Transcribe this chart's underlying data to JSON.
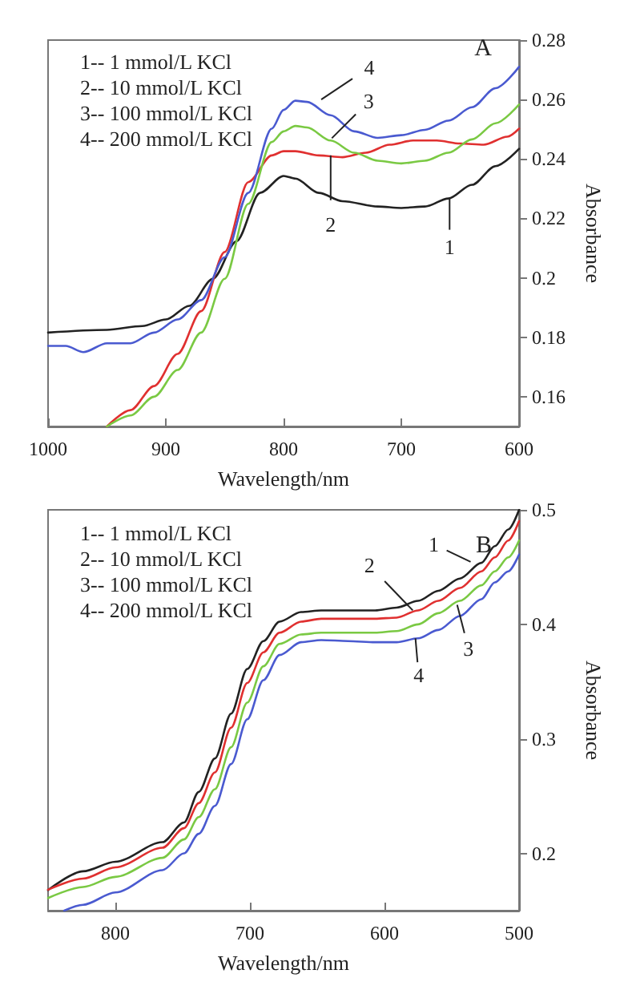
{
  "chart_data": [
    {
      "type": "line",
      "title": "A",
      "xlabel": "Wavelength/nm",
      "ylabel": "Absorbance",
      "xlim": [
        1000,
        600
      ],
      "xticks": [
        1000,
        900,
        800,
        700,
        600
      ],
      "ylim": [
        0.15,
        0.28
      ],
      "yticks": [
        0.16,
        0.18,
        0.2,
        0.22,
        0.24,
        0.26,
        0.28
      ],
      "grid": false,
      "marker": "none",
      "line_style": "solid",
      "annotations": [
        "1-- 1 mmol/L KCl",
        "2-- 10 mmol/L KCl",
        "3-- 100 mmol/L KCl",
        "4-- 200 mmol/L KCl",
        {
          "text": "4",
          "x": 768,
          "y": 0.26
        },
        {
          "text": "3",
          "x": 759,
          "y": 0.247
        },
        {
          "text": "2",
          "x": 760,
          "y": 0.2412
        },
        {
          "text": "1",
          "x": 659,
          "y": 0.2267
        }
      ],
      "series": [
        {
          "color": "#222222",
          "x": [
            1000,
            950,
            920,
            900,
            880,
            860,
            840,
            820,
            800,
            790,
            770,
            750,
            720,
            700,
            680,
            660,
            640,
            620,
            600
          ],
          "values": [
            0.1816,
            0.1825,
            0.1838,
            0.186,
            0.1906,
            0.1997,
            0.2123,
            0.2286,
            0.2343,
            0.2334,
            0.2286,
            0.2258,
            0.224,
            0.2235,
            0.224,
            0.2267,
            0.2313,
            0.2376,
            0.2434
          ]
        },
        {
          "color": "#e03030",
          "x": [
            950,
            930,
            910,
            890,
            870,
            850,
            830,
            810,
            800,
            790,
            770,
            750,
            730,
            710,
            690,
            670,
            650,
            630,
            610,
            600
          ],
          "values": [
            0.15,
            0.1555,
            0.1636,
            0.1744,
            0.1888,
            0.2087,
            0.2322,
            0.2412,
            0.2426,
            0.2426,
            0.2412,
            0.2406,
            0.2421,
            0.2448,
            0.2462,
            0.2462,
            0.2452,
            0.2448,
            0.2475,
            0.2502
          ]
        },
        {
          "color": "#7ac943",
          "x": [
            950,
            930,
            910,
            890,
            870,
            850,
            830,
            810,
            800,
            790,
            780,
            760,
            740,
            720,
            700,
            680,
            660,
            640,
            620,
            600
          ],
          "values": [
            0.15,
            0.1537,
            0.16,
            0.169,
            0.1816,
            0.1997,
            0.2249,
            0.2457,
            0.2493,
            0.2511,
            0.2506,
            0.2462,
            0.2421,
            0.2394,
            0.2385,
            0.2394,
            0.2421,
            0.2466,
            0.252,
            0.2583
          ]
        },
        {
          "color": "#4a5ad0",
          "x": [
            1000,
            985,
            970,
            950,
            930,
            910,
            890,
            870,
            850,
            830,
            810,
            800,
            790,
            780,
            760,
            740,
            720,
            700,
            680,
            660,
            640,
            620,
            600
          ],
          "values": [
            0.1771,
            0.1771,
            0.175,
            0.178,
            0.178,
            0.1816,
            0.186,
            0.1925,
            0.2069,
            0.2286,
            0.2502,
            0.2565,
            0.2596,
            0.2592,
            0.2547,
            0.2493,
            0.2471,
            0.248,
            0.2498,
            0.2529,
            0.2574,
            0.2638,
            0.271
          ]
        }
      ]
    },
    {
      "type": "line",
      "title": "B",
      "xlabel": "Wavelength/nm",
      "ylabel": "Absorbance",
      "xlim": [
        850,
        500
      ],
      "xticks": [
        800,
        700,
        600,
        500
      ],
      "ylim": [
        0.15,
        0.5
      ],
      "yticks": [
        0.2,
        0.3,
        0.4,
        0.5
      ],
      "grid": false,
      "marker": "none",
      "line_style": "solid",
      "annotations": [
        "1-- 1 mmol/L KCl",
        "2-- 10 mmol/L KCl",
        "3-- 100 mmol/L KCl",
        "4-- 200 mmol/L KCl",
        {
          "text": "1",
          "x": 536,
          "y": 0.4546
        },
        {
          "text": "2",
          "x": 579,
          "y": 0.4122
        },
        {
          "text": "3",
          "x": 546,
          "y": 0.417
        },
        {
          "text": "4",
          "x": 577,
          "y": 0.3878
        }
      ],
      "series": [
        {
          "color": "#222222",
          "x": [
            850,
            824,
            800,
            765,
            749,
            738,
            726,
            714,
            702,
            690,
            678,
            662,
            647,
            627,
            607,
            591,
            575,
            560,
            544,
            528,
            518,
            508,
            500
          ],
          "values": [
            0.168,
            0.1844,
            0.1927,
            0.2098,
            0.227,
            0.2537,
            0.2829,
            0.322,
            0.361,
            0.3854,
            0.4024,
            0.4107,
            0.4122,
            0.4122,
            0.4122,
            0.4146,
            0.4205,
            0.4293,
            0.44,
            0.4537,
            0.4683,
            0.4829,
            0.5
          ]
        },
        {
          "color": "#e03030",
          "x": [
            850,
            824,
            800,
            765,
            749,
            738,
            726,
            714,
            702,
            690,
            678,
            662,
            647,
            627,
            607,
            591,
            575,
            560,
            544,
            528,
            518,
            508,
            500
          ],
          "values": [
            0.1683,
            0.178,
            0.1878,
            0.2049,
            0.222,
            0.2439,
            0.2707,
            0.3098,
            0.3488,
            0.3756,
            0.3927,
            0.4024,
            0.4049,
            0.4049,
            0.4049,
            0.4059,
            0.4122,
            0.4205,
            0.4317,
            0.4463,
            0.4585,
            0.4732,
            0.4902
          ]
        },
        {
          "color": "#7ac943",
          "x": [
            850,
            824,
            800,
            765,
            749,
            738,
            726,
            714,
            702,
            690,
            678,
            662,
            647,
            627,
            607,
            591,
            575,
            560,
            544,
            528,
            518,
            508,
            500
          ],
          "values": [
            0.161,
            0.1707,
            0.1795,
            0.1961,
            0.2122,
            0.2317,
            0.2561,
            0.2927,
            0.3317,
            0.3634,
            0.3829,
            0.3912,
            0.3927,
            0.3927,
            0.3927,
            0.3941,
            0.4,
            0.4098,
            0.4205,
            0.4341,
            0.4463,
            0.4585,
            0.4732
          ]
        },
        {
          "color": "#4a5ad0",
          "x": [
            838,
            824,
            800,
            765,
            749,
            738,
            726,
            714,
            702,
            690,
            678,
            662,
            647,
            627,
            607,
            591,
            575,
            560,
            544,
            528,
            518,
            508,
            500
          ],
          "values": [
            0.15,
            0.1551,
            0.1659,
            0.1854,
            0.2,
            0.2171,
            0.2415,
            0.278,
            0.3171,
            0.3512,
            0.3732,
            0.3844,
            0.3863,
            0.3854,
            0.3844,
            0.3844,
            0.3878,
            0.3951,
            0.4073,
            0.422,
            0.4366,
            0.4463,
            0.461
          ]
        }
      ]
    }
  ]
}
